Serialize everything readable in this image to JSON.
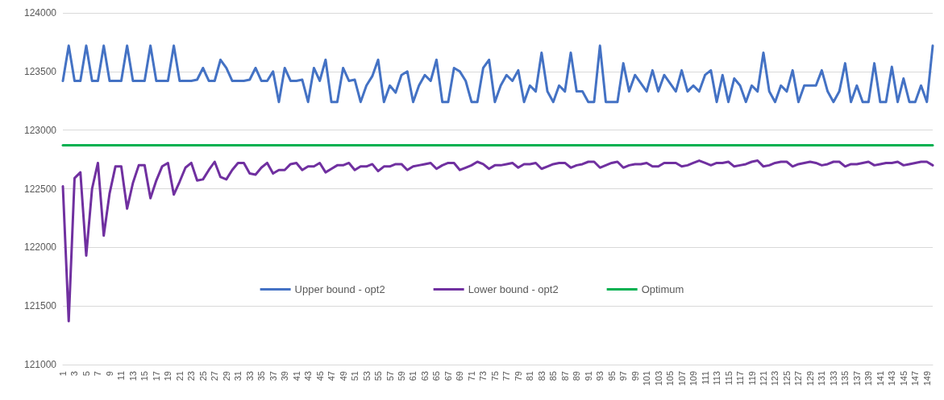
{
  "chart_data": {
    "type": "line",
    "categories": [
      "1",
      null,
      "3",
      null,
      "5",
      null,
      "7",
      null,
      "9",
      null,
      "11",
      null,
      "13",
      null,
      "15",
      null,
      "17",
      null,
      "19",
      null,
      "21",
      null,
      "23",
      null,
      "25",
      null,
      "27",
      null,
      "29",
      null,
      "31",
      null,
      "33",
      null,
      "35",
      null,
      "37",
      null,
      "39",
      null,
      "41",
      null,
      "43",
      null,
      "45",
      null,
      "47",
      null,
      "49",
      null,
      "51",
      null,
      "53",
      null,
      "55",
      null,
      "57",
      null,
      "59",
      null,
      "61",
      null,
      "63",
      null,
      "65",
      null,
      "67",
      null,
      "69",
      null,
      "71",
      null,
      "73",
      null,
      "75",
      null,
      "77",
      null,
      "79",
      null,
      "81",
      null,
      "83",
      null,
      "85",
      null,
      "87",
      null,
      "89",
      null,
      "91",
      null,
      "93",
      null,
      "95",
      null,
      "97",
      null,
      "99",
      null,
      "101",
      null,
      "103",
      null,
      "105",
      null,
      "107",
      null,
      "109",
      null,
      "111",
      null,
      "113",
      null,
      "115",
      null,
      "117",
      null,
      "119",
      null,
      "121",
      null,
      "123",
      null,
      "125",
      null,
      "127",
      null,
      "129",
      null,
      "131",
      null,
      "133",
      null,
      "135",
      null,
      "137",
      null,
      "139",
      null,
      "141",
      null,
      "143",
      null,
      "145",
      null,
      "147",
      null,
      "149",
      null
    ],
    "series": [
      {
        "name": "Upper bound - opt2",
        "color": "#4472c4",
        "values": [
          123420,
          123720,
          123420,
          123420,
          123720,
          123420,
          123420,
          123720,
          123420,
          123420,
          123420,
          123720,
          123420,
          123420,
          123420,
          123720,
          123420,
          123420,
          123420,
          123720,
          123420,
          123420,
          123420,
          123430,
          123530,
          123420,
          123420,
          123600,
          123530,
          123420,
          123420,
          123420,
          123430,
          123530,
          123420,
          123420,
          123500,
          123240,
          123530,
          123420,
          123420,
          123430,
          123240,
          123530,
          123420,
          123600,
          123240,
          123240,
          123530,
          123420,
          123430,
          123240,
          123380,
          123460,
          123600,
          123240,
          123380,
          123320,
          123470,
          123500,
          123240,
          123380,
          123470,
          123420,
          123600,
          123240,
          123240,
          123530,
          123500,
          123420,
          123240,
          123240,
          123530,
          123600,
          123240,
          123380,
          123470,
          123420,
          123510,
          123240,
          123380,
          123330,
          123660,
          123330,
          123240,
          123380,
          123330,
          123660,
          123330,
          123330,
          123240,
          123240,
          123720,
          123240,
          123240,
          123240,
          123570,
          123330,
          123470,
          123400,
          123330,
          123510,
          123330,
          123470,
          123400,
          123330,
          123510,
          123330,
          123380,
          123330,
          123470,
          123510,
          123240,
          123470,
          123240,
          123440,
          123380,
          123240,
          123380,
          123330,
          123660,
          123330,
          123240,
          123380,
          123330,
          123510,
          123240,
          123380,
          123380,
          123380,
          123510,
          123330,
          123240,
          123330,
          123570,
          123240,
          123380,
          123240,
          123240,
          123570,
          123240,
          123240,
          123540,
          123240,
          123440,
          123240,
          123240,
          123380,
          123240,
          123720
        ]
      },
      {
        "name": "Lower bound - opt2",
        "color": "#7030a0",
        "values": [
          122520,
          121370,
          122590,
          122640,
          121930,
          122500,
          122720,
          122100,
          122460,
          122690,
          122690,
          122330,
          122550,
          122700,
          122700,
          122420,
          122570,
          122690,
          122720,
          122450,
          122560,
          122680,
          122720,
          122570,
          122580,
          122660,
          122730,
          122600,
          122580,
          122660,
          122720,
          122720,
          122630,
          122620,
          122680,
          122720,
          122630,
          122660,
          122660,
          122710,
          122720,
          122660,
          122690,
          122690,
          122720,
          122640,
          122670,
          122700,
          122700,
          122720,
          122660,
          122690,
          122690,
          122710,
          122650,
          122690,
          122690,
          122710,
          122710,
          122660,
          122690,
          122700,
          122710,
          122720,
          122670,
          122700,
          122720,
          122720,
          122660,
          122680,
          122700,
          122730,
          122710,
          122670,
          122700,
          122700,
          122710,
          122720,
          122680,
          122710,
          122710,
          122720,
          122670,
          122690,
          122710,
          122720,
          122720,
          122680,
          122700,
          122710,
          122730,
          122730,
          122680,
          122700,
          122720,
          122730,
          122680,
          122700,
          122710,
          122710,
          122720,
          122690,
          122690,
          122720,
          122720,
          122720,
          122690,
          122700,
          122720,
          122740,
          122720,
          122700,
          122720,
          122720,
          122730,
          122690,
          122700,
          122710,
          122730,
          122740,
          122690,
          122700,
          122720,
          122730,
          122730,
          122690,
          122710,
          122720,
          122730,
          122720,
          122700,
          122710,
          122730,
          122730,
          122690,
          122710,
          122710,
          122720,
          122730,
          122700,
          122710,
          122720,
          122720,
          122730,
          122700,
          122710,
          122720,
          122730,
          122730,
          122700
        ]
      },
      {
        "name": "Optimum",
        "color": "#00b050",
        "values": [
          122870,
          122870,
          122870,
          122870,
          122870,
          122870,
          122870,
          122870,
          122870,
          122870,
          122870,
          122870,
          122870,
          122870,
          122870,
          122870,
          122870,
          122870,
          122870,
          122870,
          122870,
          122870,
          122870,
          122870,
          122870,
          122870,
          122870,
          122870,
          122870,
          122870,
          122870,
          122870,
          122870,
          122870,
          122870,
          122870,
          122870,
          122870,
          122870,
          122870,
          122870,
          122870,
          122870,
          122870,
          122870,
          122870,
          122870,
          122870,
          122870,
          122870,
          122870,
          122870,
          122870,
          122870,
          122870,
          122870,
          122870,
          122870,
          122870,
          122870,
          122870,
          122870,
          122870,
          122870,
          122870,
          122870,
          122870,
          122870,
          122870,
          122870,
          122870,
          122870,
          122870,
          122870,
          122870,
          122870,
          122870,
          122870,
          122870,
          122870,
          122870,
          122870,
          122870,
          122870,
          122870,
          122870,
          122870,
          122870,
          122870,
          122870,
          122870,
          122870,
          122870,
          122870,
          122870,
          122870,
          122870,
          122870,
          122870,
          122870,
          122870,
          122870,
          122870,
          122870,
          122870,
          122870,
          122870,
          122870,
          122870,
          122870,
          122870,
          122870,
          122870,
          122870,
          122870,
          122870,
          122870,
          122870,
          122870,
          122870,
          122870,
          122870,
          122870,
          122870,
          122870,
          122870,
          122870,
          122870,
          122870,
          122870,
          122870,
          122870,
          122870,
          122870,
          122870,
          122870,
          122870,
          122870,
          122870,
          122870,
          122870,
          122870,
          122870,
          122870,
          122870,
          122870,
          122870,
          122870,
          122870,
          122870
        ]
      }
    ],
    "ylim": [
      121000,
      124000
    ],
    "yticks": [
      121000,
      121500,
      122000,
      122500,
      123000,
      123500,
      124000
    ],
    "grid": "y",
    "legend": "bottom"
  }
}
